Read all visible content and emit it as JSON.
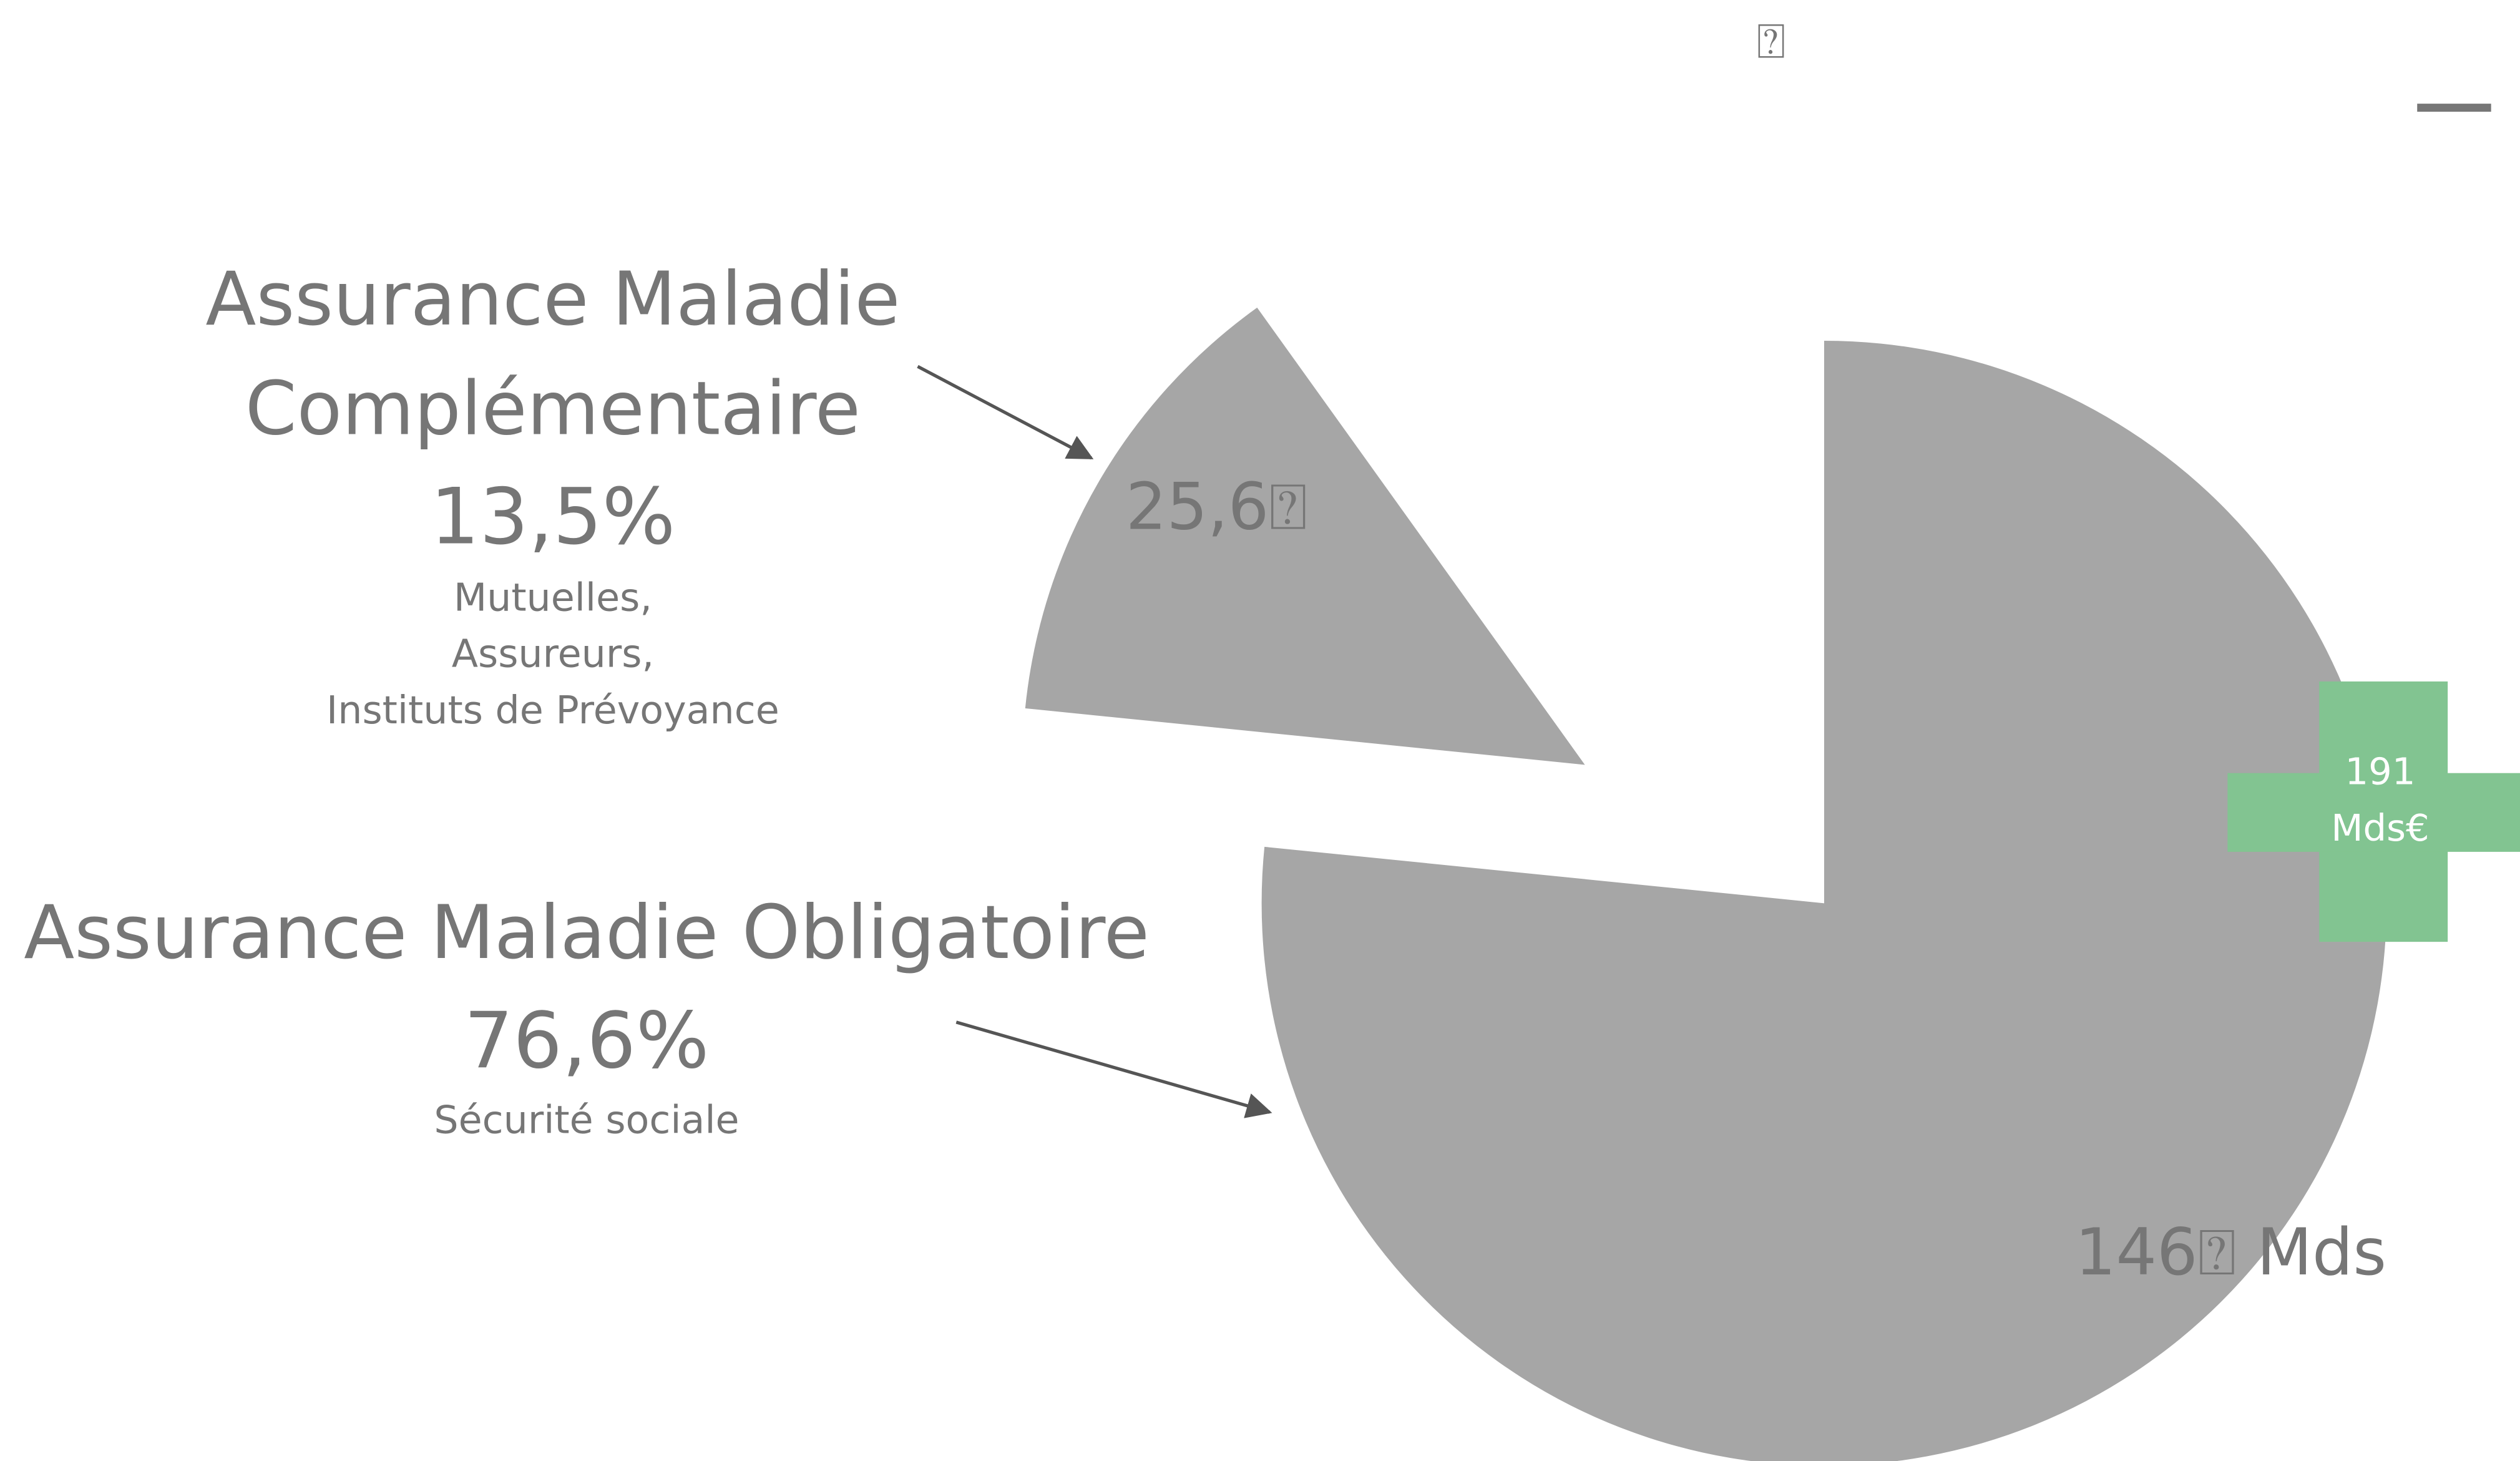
{
  "top_icon": "⍰",
  "chart_data": {
    "type": "pie",
    "categories": [
      "Assurance Maladie Obligatoire",
      "Assurance Maladie Complémentaire"
    ],
    "values": [
      76.6,
      13.5
    ],
    "value_labels": [
      "76,6%",
      "13,5%"
    ],
    "descriptions": [
      [
        "Sécurité sociale"
      ],
      [
        "Mutuelles,",
        "Assureurs,",
        "Instituts de Prévoyance"
      ]
    ],
    "slice_labels": [
      "146⍰ Mds",
      "25,6⍰"
    ],
    "color": "#a6a6a6",
    "total_label": "191 Mds€",
    "total_color": "#82c491"
  }
}
